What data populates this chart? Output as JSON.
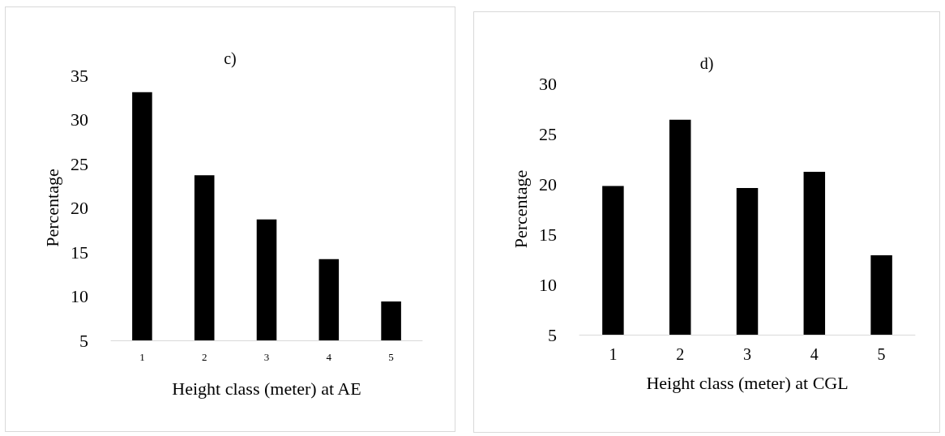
{
  "chart_data": [
    {
      "type": "bar",
      "title": "c)",
      "xlabel": "Height class (meter) at AE",
      "ylabel": "Percentage",
      "categories": [
        "1",
        "2",
        "3",
        "4",
        "5"
      ],
      "values": [
        33.1,
        23.7,
        18.7,
        14.2,
        9.4
      ],
      "color": "#000000",
      "ylim": [
        5,
        35
      ],
      "yticks": [
        5,
        10,
        15,
        20,
        25,
        30,
        35
      ],
      "grid": false
    },
    {
      "type": "bar",
      "title": "d)",
      "xlabel": "Height class (meter) at CGL",
      "ylabel": "Percentage",
      "categories": [
        "1",
        "2",
        "3",
        "4",
        "5"
      ],
      "values": [
        19.8,
        26.4,
        19.6,
        21.2,
        12.9
      ],
      "color": "#000000",
      "ylim": [
        5,
        30
      ],
      "yticks": [
        5,
        10,
        15,
        20,
        25,
        30
      ],
      "grid": false
    }
  ]
}
